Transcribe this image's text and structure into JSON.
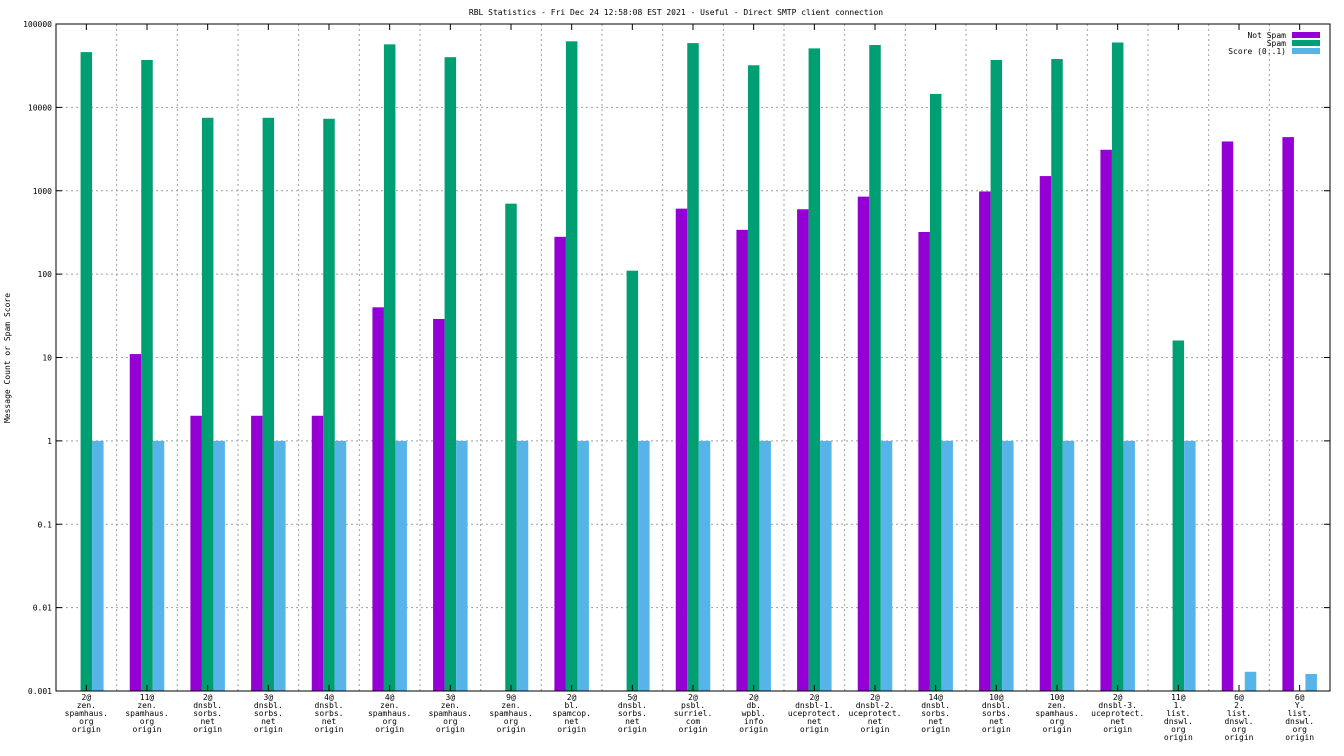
{
  "chart_data": {
    "type": "bar",
    "title": "RBL Statistics - Fri Dec 24 12:58:08 EST 2021 - Useful - Direct SMTP client connection",
    "xlabel": "",
    "ylabel": "Message Count or Spam Score",
    "yscale": "log",
    "ylim": [
      0.001,
      100000
    ],
    "yticks": [
      "0.001",
      "0.01",
      "0.1",
      "1",
      "10",
      "100",
      "1000",
      "10000",
      "100000"
    ],
    "grid": true,
    "legend_position": "top-right",
    "categories": [
      [
        "2@",
        "zen.",
        "spamhaus.",
        "org",
        "origin"
      ],
      [
        "11@",
        "zen.",
        "spamhaus.",
        "org",
        "origin"
      ],
      [
        "2@",
        "dnsbl.",
        "sorbs.",
        "net",
        "origin"
      ],
      [
        "3@",
        "dnsbl.",
        "sorbs.",
        "net",
        "origin"
      ],
      [
        "4@",
        "dnsbl.",
        "sorbs.",
        "net",
        "origin"
      ],
      [
        "4@",
        "zen.",
        "spamhaus.",
        "org",
        "origin"
      ],
      [
        "3@",
        "zen.",
        "spamhaus.",
        "org",
        "origin"
      ],
      [
        "9@",
        "zen.",
        "spamhaus.",
        "org",
        "origin"
      ],
      [
        "2@",
        "bl.",
        "spamcop.",
        "net",
        "origin"
      ],
      [
        "5@",
        "dnsbl.",
        "sorbs.",
        "net",
        "origin"
      ],
      [
        "2@",
        "psbl.",
        "surriel.",
        "com",
        "origin"
      ],
      [
        "2@",
        "db.",
        "wpbl.",
        "info",
        "origin"
      ],
      [
        "2@",
        "dnsbl-1.",
        "uceprotect.",
        "net",
        "origin"
      ],
      [
        "2@",
        "dnsbl-2.",
        "uceprotect.",
        "net",
        "origin"
      ],
      [
        "14@",
        "dnsbl.",
        "sorbs.",
        "net",
        "origin"
      ],
      [
        "10@",
        "dnsbl.",
        "sorbs.",
        "net",
        "origin"
      ],
      [
        "10@",
        "zen.",
        "spamhaus.",
        "org",
        "origin"
      ],
      [
        "2@",
        "dnsbl-3.",
        "uceprotect.",
        "net",
        "origin"
      ],
      [
        "11@",
        "1.",
        "list.",
        "dnswl.",
        "org",
        "origin"
      ],
      [
        "6@",
        "2.",
        "list.",
        "dnswl.",
        "org",
        "origin"
      ],
      [
        "6@",
        "Y.",
        "list.",
        "dnswl.",
        "org",
        "origin"
      ]
    ],
    "series": [
      {
        "name": "Not Spam",
        "color": "#9400d3",
        "values": [
          null,
          11,
          2,
          2,
          2,
          40,
          29,
          null,
          280,
          null,
          610,
          340,
          600,
          850,
          320,
          980,
          1500,
          3100,
          null,
          3900,
          4400
        ]
      },
      {
        "name": "Spam",
        "color": "#009e73",
        "values": [
          46000,
          37000,
          7500,
          7500,
          7300,
          57000,
          40000,
          700,
          62000,
          110,
          59000,
          32000,
          51000,
          56000,
          14500,
          37000,
          38000,
          60000,
          16,
          null,
          null
        ]
      },
      {
        "name": "Score (0..1)",
        "color": "#56b4e9",
        "values": [
          1,
          1,
          1,
          1,
          1,
          1,
          1,
          1,
          1,
          1,
          1,
          1,
          1,
          1,
          1,
          1,
          1,
          1,
          1,
          0.0017,
          0.0016
        ]
      }
    ]
  }
}
